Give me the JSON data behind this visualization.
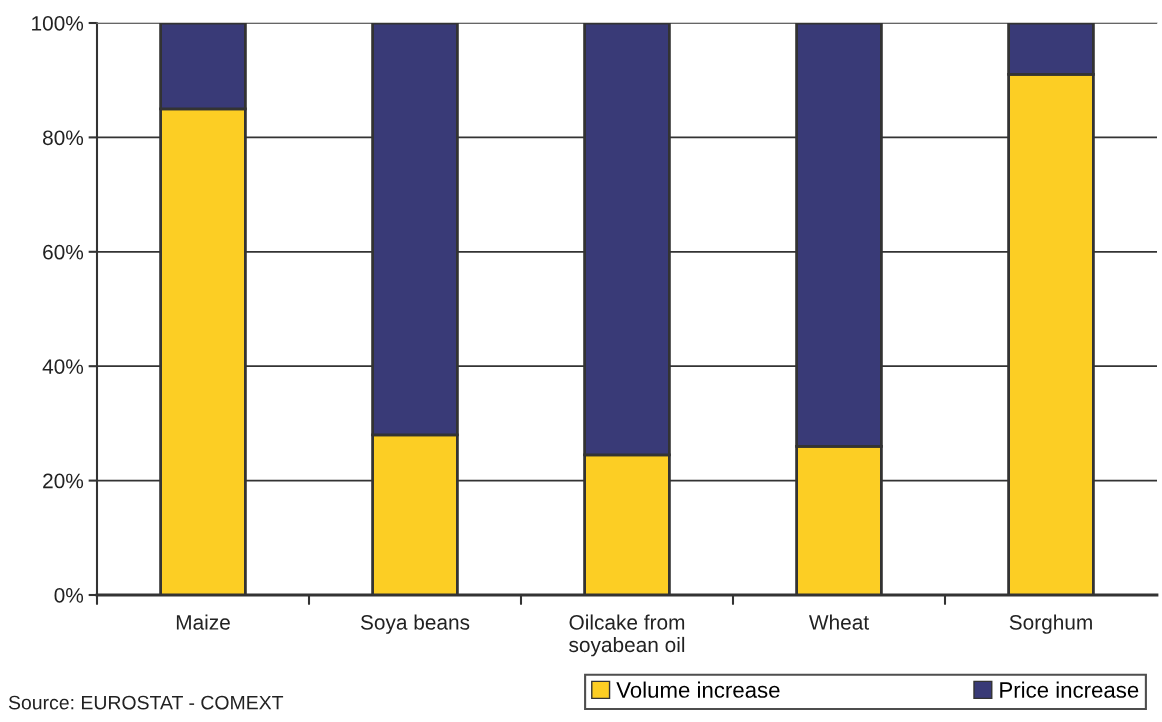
{
  "chart_data": {
    "type": "bar",
    "stacked": true,
    "categories": [
      "Maize",
      "Soya beans",
      "Oilcake from\nsoyabean oil",
      "Wheat",
      "Sorghum"
    ],
    "series": [
      {
        "name": "Volume increase",
        "color": "#fcce24",
        "values": [
          85,
          28,
          24.5,
          26,
          91
        ]
      },
      {
        "name": "Price increase",
        "color": "#393a77",
        "values": [
          15,
          72,
          75.5,
          74,
          9
        ]
      }
    ],
    "ylim": [
      0,
      100
    ],
    "yticks": [
      {
        "value": 0,
        "label": "0%"
      },
      {
        "value": 20,
        "label": "20%"
      },
      {
        "value": 40,
        "label": "40%"
      },
      {
        "value": 60,
        "label": "60%"
      },
      {
        "value": 80,
        "label": "80%"
      },
      {
        "value": 100,
        "label": "100%"
      }
    ],
    "grid": "y",
    "legend": "bottom right",
    "annotations": [
      "Source: EUROSTAT - COMEXT"
    ]
  }
}
